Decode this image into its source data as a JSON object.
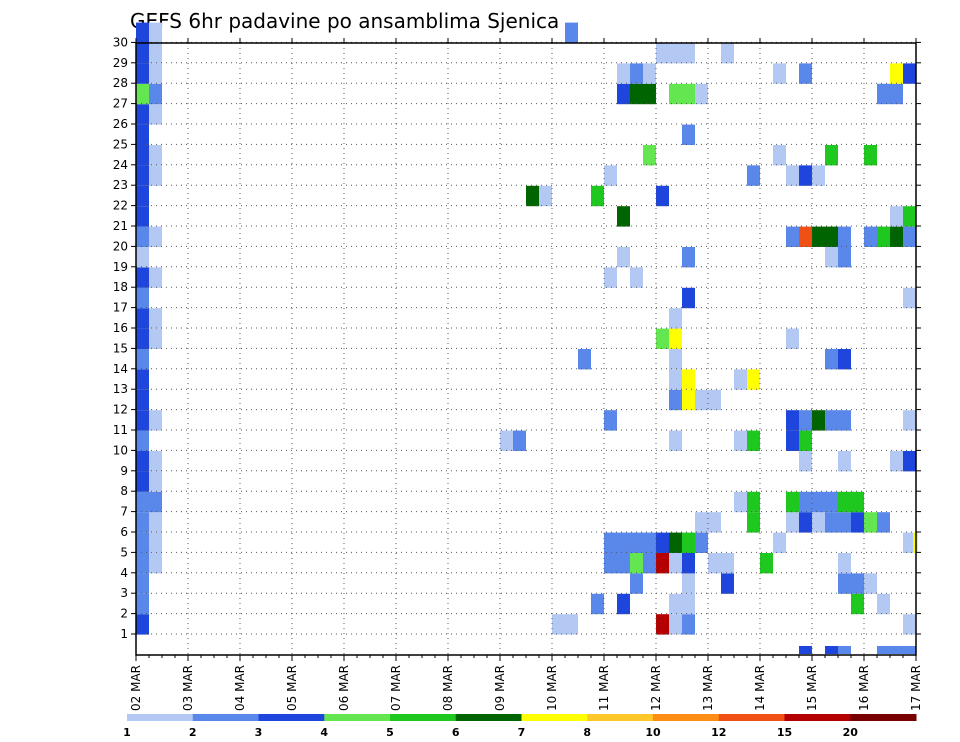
{
  "chart_data": {
    "type": "heatmap",
    "title": "GEFS 6hr padavine po ansamblima Sjenica",
    "x_tick_labels": [
      "02 MAR",
      "03 MAR",
      "04 MAR",
      "05 MAR",
      "06 MAR",
      "07 MAR",
      "08 MAR",
      "09 MAR",
      "10 MAR",
      "11 MAR",
      "12 MAR",
      "13 MAR",
      "14 MAR",
      "15 MAR",
      "16 MAR",
      "17 MAR"
    ],
    "y_tick_labels": [
      "1",
      "2",
      "3",
      "4",
      "5",
      "6",
      "7",
      "8",
      "9",
      "10",
      "11",
      "12",
      "13",
      "14",
      "15",
      "16",
      "17",
      "18",
      "19",
      "20",
      "21",
      "22",
      "23",
      "24",
      "25",
      "26",
      "27",
      "28",
      "29",
      "30"
    ],
    "x_unit": "6-hour step from 02 MAR 00Z",
    "x_range": [
      0,
      60
    ],
    "y_range": [
      0,
      30
    ],
    "grid": "dotted",
    "colorbar": {
      "placement": "bottom",
      "levels": [
        1,
        2,
        3,
        4,
        5,
        6,
        7,
        8,
        10,
        12,
        15,
        20
      ],
      "labels": [
        "1",
        "2",
        "3",
        "4",
        "5",
        "6",
        "7",
        "8",
        "10",
        "12",
        "15",
        "20"
      ],
      "colors": [
        "#b4c8f4",
        "#5a87ea",
        "#1e46dc",
        "#64e650",
        "#1ec81e",
        "#006400",
        "#ffff00",
        "#ffc828",
        "#ff8c14",
        "#f05014",
        "#b40000",
        "#780000"
      ]
    },
    "cells": [
      [
        0,
        0,
        3
      ],
      [
        0,
        1,
        2
      ],
      [
        0,
        2,
        2
      ],
      [
        0,
        3,
        2
      ],
      [
        0,
        4,
        2
      ],
      [
        0,
        5,
        2
      ],
      [
        0,
        6,
        2
      ],
      [
        0,
        7,
        3
      ],
      [
        0,
        8,
        3
      ],
      [
        0,
        9,
        2
      ],
      [
        0,
        10,
        3
      ],
      [
        0,
        11,
        3
      ],
      [
        0,
        12,
        3
      ],
      [
        0,
        13,
        2
      ],
      [
        0,
        14,
        3
      ],
      [
        0,
        15,
        3
      ],
      [
        0,
        16,
        2
      ],
      [
        0,
        17,
        3
      ],
      [
        0,
        18,
        1
      ],
      [
        0,
        19,
        2
      ],
      [
        0,
        20,
        3
      ],
      [
        0,
        21,
        3
      ],
      [
        0,
        22,
        3
      ],
      [
        0,
        23,
        3
      ],
      [
        0,
        24,
        3
      ],
      [
        0,
        25,
        3
      ],
      [
        0,
        26,
        4
      ],
      [
        0,
        27,
        3
      ],
      [
        0,
        28,
        3
      ],
      [
        0,
        29,
        3
      ],
      [
        1,
        3,
        1
      ],
      [
        1,
        4,
        1
      ],
      [
        1,
        5,
        1
      ],
      [
        1,
        6,
        2
      ],
      [
        1,
        7,
        1
      ],
      [
        1,
        8,
        1
      ],
      [
        1,
        10,
        1
      ],
      [
        1,
        14,
        1
      ],
      [
        1,
        15,
        1
      ],
      [
        1,
        17,
        1
      ],
      [
        1,
        19,
        1
      ],
      [
        1,
        22,
        1
      ],
      [
        1,
        23,
        1
      ],
      [
        1,
        25,
        1
      ],
      [
        1,
        26,
        2
      ],
      [
        1,
        27,
        1
      ],
      [
        1,
        28,
        1
      ],
      [
        1,
        29,
        1
      ],
      [
        28,
        9,
        1
      ],
      [
        29,
        9,
        2
      ],
      [
        30,
        21,
        6
      ],
      [
        31,
        21,
        1
      ],
      [
        32,
        0,
        1
      ],
      [
        33,
        0,
        1
      ],
      [
        33,
        29,
        2
      ],
      [
        34,
        13,
        2
      ],
      [
        35,
        1,
        2
      ],
      [
        36,
        3,
        2
      ],
      [
        36,
        4,
        2
      ],
      [
        36,
        10,
        2
      ],
      [
        36,
        17,
        1
      ],
      [
        36,
        22,
        1
      ],
      [
        35,
        21,
        5
      ],
      [
        37,
        1,
        3
      ],
      [
        37,
        3,
        2
      ],
      [
        37,
        4,
        2
      ],
      [
        37,
        18,
        1
      ],
      [
        37,
        20,
        6
      ],
      [
        37,
        26,
        3
      ],
      [
        37,
        27,
        1
      ],
      [
        38,
        2,
        2
      ],
      [
        38,
        3,
        4
      ],
      [
        38,
        4,
        2
      ],
      [
        38,
        17,
        1
      ],
      [
        38,
        26,
        6
      ],
      [
        38,
        27,
        2
      ],
      [
        39,
        3,
        2
      ],
      [
        39,
        4,
        2
      ],
      [
        39,
        23,
        4
      ],
      [
        39,
        26,
        6
      ],
      [
        39,
        27,
        1
      ],
      [
        40,
        0,
        11
      ],
      [
        40,
        3,
        11
      ],
      [
        40,
        4,
        3
      ],
      [
        40,
        14,
        4
      ],
      [
        40,
        21,
        3
      ],
      [
        40,
        28,
        1
      ],
      [
        41,
        0,
        1
      ],
      [
        41,
        1,
        1
      ],
      [
        41,
        3,
        1
      ],
      [
        41,
        4,
        6
      ],
      [
        41,
        9,
        1
      ],
      [
        41,
        11,
        2
      ],
      [
        41,
        12,
        1
      ],
      [
        41,
        13,
        1
      ],
      [
        41,
        14,
        7
      ],
      [
        41,
        15,
        1
      ],
      [
        41,
        26,
        4
      ],
      [
        41,
        28,
        1
      ],
      [
        42,
        0,
        2
      ],
      [
        42,
        1,
        1
      ],
      [
        42,
        2,
        1
      ],
      [
        42,
        3,
        3
      ],
      [
        42,
        4,
        5
      ],
      [
        42,
        11,
        7
      ],
      [
        42,
        12,
        7
      ],
      [
        42,
        16,
        3
      ],
      [
        42,
        18,
        2
      ],
      [
        42,
        24,
        2
      ],
      [
        42,
        26,
        4
      ],
      [
        42,
        28,
        1
      ],
      [
        43,
        4,
        2
      ],
      [
        43,
        5,
        1
      ],
      [
        43,
        11,
        1
      ],
      [
        43,
        26,
        1
      ],
      [
        44,
        3,
        1
      ],
      [
        44,
        5,
        1
      ],
      [
        44,
        11,
        1
      ],
      [
        45,
        2,
        3
      ],
      [
        45,
        3,
        1
      ],
      [
        45,
        28,
        1
      ],
      [
        46,
        6,
        1
      ],
      [
        46,
        9,
        1
      ],
      [
        46,
        12,
        1
      ],
      [
        47,
        5,
        5
      ],
      [
        47,
        6,
        5
      ],
      [
        47,
        9,
        5
      ],
      [
        47,
        12,
        7
      ],
      [
        47,
        22,
        2
      ],
      [
        48,
        3,
        5
      ],
      [
        49,
        4,
        1
      ],
      [
        49,
        23,
        1
      ],
      [
        49,
        27,
        1
      ],
      [
        50,
        5,
        1
      ],
      [
        50,
        6,
        5
      ],
      [
        50,
        9,
        3
      ],
      [
        50,
        10,
        3
      ],
      [
        50,
        14,
        1
      ],
      [
        50,
        22,
        1
      ],
      [
        50,
        19,
        2
      ],
      [
        51,
        5,
        3
      ],
      [
        51,
        6,
        2
      ],
      [
        51,
        8,
        1
      ],
      [
        51,
        9,
        5
      ],
      [
        51,
        10,
        2
      ],
      [
        51,
        19,
        10
      ],
      [
        51,
        22,
        3
      ],
      [
        51,
        27,
        2
      ],
      [
        52,
        5,
        1
      ],
      [
        52,
        6,
        2
      ],
      [
        52,
        10,
        6
      ],
      [
        52,
        19,
        6
      ],
      [
        52,
        22,
        1
      ],
      [
        53,
        5,
        2
      ],
      [
        53,
        6,
        2
      ],
      [
        53,
        10,
        2
      ],
      [
        53,
        13,
        2
      ],
      [
        53,
        19,
        6
      ],
      [
        53,
        18,
        1
      ],
      [
        53,
        23,
        5
      ],
      [
        54,
        2,
        2
      ],
      [
        54,
        3,
        1
      ],
      [
        54,
        5,
        2
      ],
      [
        54,
        6,
        5
      ],
      [
        54,
        8,
        1
      ],
      [
        54,
        10,
        2
      ],
      [
        54,
        13,
        3
      ],
      [
        54,
        18,
        2
      ],
      [
        54,
        19,
        2
      ],
      [
        55,
        1,
        5
      ],
      [
        55,
        2,
        2
      ],
      [
        55,
        5,
        3
      ],
      [
        55,
        6,
        5
      ],
      [
        56,
        2,
        1
      ],
      [
        56,
        5,
        4
      ],
      [
        56,
        19,
        2
      ],
      [
        56,
        23,
        5
      ],
      [
        57,
        1,
        1
      ],
      [
        57,
        5,
        2
      ],
      [
        57,
        19,
        5
      ],
      [
        57,
        26,
        2
      ],
      [
        58,
        8,
        1
      ],
      [
        58,
        19,
        6
      ],
      [
        58,
        20,
        1
      ],
      [
        58,
        26,
        2
      ],
      [
        58,
        27,
        7
      ],
      [
        59,
        0,
        1
      ],
      [
        59,
        4,
        1
      ],
      [
        59,
        8,
        3
      ],
      [
        59,
        10,
        1
      ],
      [
        59,
        16,
        1
      ],
      [
        59,
        19,
        2
      ],
      [
        59,
        20,
        5
      ],
      [
        59,
        27,
        3
      ]
    ],
    "bottom_cells": [
      [
        51,
        3
      ],
      [
        53,
        3
      ],
      [
        54,
        2
      ],
      [
        57,
        2
      ],
      [
        58,
        2
      ],
      [
        59,
        2
      ]
    ],
    "right_edge_cells": [
      [
        4,
        7
      ]
    ]
  }
}
